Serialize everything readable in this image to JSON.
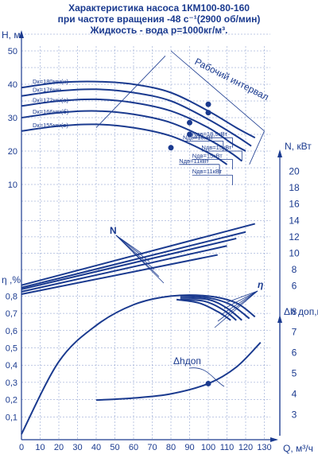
{
  "title_lines": [
    "Характеристика насоса 1КМ100-80-160",
    "при частоте вращения -48 с⁻¹(2900 об/мин)",
    "Жидкость - вода р=1000кг/м³."
  ],
  "colors": {
    "ink": "#1a3a8f",
    "grid": "#7f93c8",
    "background": "#ffffff"
  },
  "chart_data": {
    "type": "line",
    "x": {
      "label": "Q, м³/ч",
      "range": [
        0,
        130
      ],
      "ticks": [
        0,
        10,
        20,
        30,
        40,
        50,
        60,
        70,
        80,
        90,
        100,
        110,
        120,
        130
      ]
    },
    "y_H": {
      "label": "Н, м",
      "range": [
        0,
        55
      ],
      "ticks": [
        10,
        20,
        30,
        40,
        50
      ]
    },
    "y_N": {
      "label": "N, кВт",
      "range": [
        4,
        23
      ],
      "ticks": [
        6,
        8,
        10,
        12,
        14,
        16,
        18,
        20
      ]
    },
    "y_eta": {
      "label": "η ,%",
      "range": [
        0,
        0.85
      ],
      "ticks": [
        "0,1",
        "0,2",
        "0,3",
        "0,4",
        "0,5",
        "0,6",
        "0,7",
        "0,8"
      ]
    },
    "y_npsh": {
      "label": "Δh доп,м",
      "range": [
        2,
        9
      ],
      "ticks": [
        3,
        4,
        5,
        6,
        7,
        8
      ]
    },
    "grid": true,
    "head_curves": [
      {
        "name": "Dк=180мм(н)",
        "points": [
          [
            0,
            39
          ],
          [
            20,
            40.5
          ],
          [
            40,
            40.8
          ],
          [
            60,
            40
          ],
          [
            80,
            37.5
          ],
          [
            100,
            32
          ],
          [
            115,
            27
          ],
          [
            125,
            24
          ]
        ]
      },
      {
        "name": "Dк=176мм",
        "points": [
          [
            0,
            36.5
          ],
          [
            20,
            38
          ],
          [
            40,
            38.5
          ],
          [
            60,
            37.5
          ],
          [
            80,
            35
          ],
          [
            100,
            29.5
          ],
          [
            115,
            24.5
          ],
          [
            123,
            21.5
          ]
        ]
      },
      {
        "name": "Dк=172мм(а)",
        "points": [
          [
            0,
            33.5
          ],
          [
            20,
            35
          ],
          [
            40,
            35.5
          ],
          [
            60,
            34.5
          ],
          [
            80,
            32
          ],
          [
            100,
            27
          ],
          [
            112,
            22.5
          ],
          [
            120,
            20
          ]
        ]
      },
      {
        "name": "Dк=166мм(б)",
        "points": [
          [
            0,
            30
          ],
          [
            20,
            31.5
          ],
          [
            40,
            32
          ],
          [
            60,
            31
          ],
          [
            80,
            28.5
          ],
          [
            100,
            23.5
          ],
          [
            112,
            19.5
          ],
          [
            118,
            17
          ]
        ]
      },
      {
        "name": "Dк=155мм(в)",
        "points": [
          [
            0,
            26
          ],
          [
            20,
            27.5
          ],
          [
            40,
            28
          ],
          [
            60,
            27
          ],
          [
            80,
            24.5
          ],
          [
            100,
            19.5
          ],
          [
            110,
            16
          ]
        ]
      }
    ],
    "power_labels": [
      "Nдв=18,5кВт",
      "Nдв=15кВт",
      "Nдв=15кВт",
      "Nдв=15кВт",
      "Nдв=11кВт",
      "Nдв=11кВт"
    ],
    "power_curves": {
      "name": "N",
      "lines": [
        {
          "points": [
            [
              0,
              6.1
            ],
            [
              125,
              13.6
            ]
          ]
        },
        {
          "points": [
            [
              0,
              5.8
            ],
            [
              120,
              12.6
            ]
          ]
        },
        {
          "points": [
            [
              0,
              5.6
            ],
            [
              115,
              11.8
            ]
          ]
        },
        {
          "points": [
            [
              0,
              5.3
            ],
            [
              110,
              10.9
            ]
          ]
        },
        {
          "points": [
            [
              0,
              5.0
            ],
            [
              105,
              9.8
            ]
          ]
        }
      ]
    },
    "efficiency_curves": {
      "name": "η",
      "lines": [
        {
          "points": [
            [
              0,
              0
            ],
            [
              20,
              0.42
            ],
            [
              40,
              0.63
            ],
            [
              60,
              0.75
            ],
            [
              80,
              0.8
            ],
            [
              100,
              0.8
            ],
            [
              115,
              0.76
            ],
            [
              125,
              0.68
            ]
          ]
        },
        {
          "points": [
            [
              85,
              0.8
            ],
            [
              100,
              0.79
            ],
            [
              112,
              0.75
            ],
            [
              122,
              0.67
            ]
          ]
        },
        {
          "points": [
            [
              85,
              0.79
            ],
            [
              100,
              0.78
            ],
            [
              110,
              0.73
            ],
            [
              118,
              0.66
            ]
          ]
        },
        {
          "points": [
            [
              85,
              0.78
            ],
            [
              98,
              0.77
            ],
            [
              108,
              0.72
            ],
            [
              115,
              0.66
            ]
          ]
        },
        {
          "points": [
            [
              83,
              0.78
            ],
            [
              95,
              0.76
            ],
            [
              105,
              0.71
            ],
            [
              112,
              0.66
            ]
          ]
        }
      ]
    },
    "npsh_curve": {
      "name": "Δhдоп",
      "points": [
        [
          40,
          3.7
        ],
        [
          60,
          3.8
        ],
        [
          80,
          4.0
        ],
        [
          100,
          4.5
        ],
        [
          115,
          5.3
        ],
        [
          128,
          6.5
        ]
      ]
    },
    "annotations": {
      "working_interval": "Рабочий интервал"
    }
  }
}
